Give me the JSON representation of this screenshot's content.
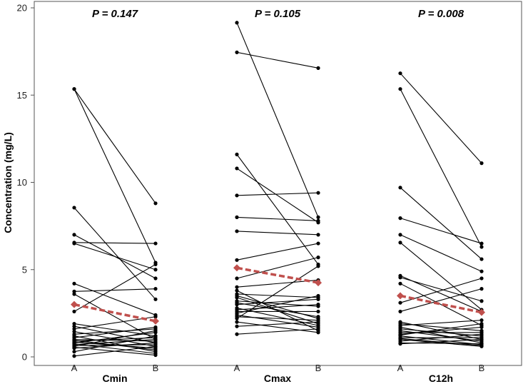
{
  "chart_data": {
    "type": "paired-dot-line",
    "ylabel": "Concentration (mg/L)",
    "ylim": [
      0,
      20
    ],
    "yticks": [
      0,
      5,
      10,
      15,
      20
    ],
    "ytick_labels": [
      "0",
      "5",
      "10",
      "15",
      "20"
    ],
    "conditions": [
      "A",
      "B"
    ],
    "mean_color": "#c0504d",
    "line_color": "#000000",
    "groups": [
      {
        "name": "Cmin",
        "p_label": "P = 0.147",
        "mean": [
          3.0,
          2.05
        ],
        "pairs": [
          [
            15.35,
            8.8
          ],
          [
            15.35,
            5.4
          ],
          [
            8.55,
            3.3
          ],
          [
            7.0,
            4.5
          ],
          [
            6.55,
            6.5
          ],
          [
            6.5,
            5.0
          ],
          [
            4.2,
            2.4
          ],
          [
            3.75,
            3.9
          ],
          [
            3.6,
            1.0
          ],
          [
            2.6,
            5.3
          ],
          [
            1.9,
            1.2
          ],
          [
            1.75,
            0.8
          ],
          [
            1.6,
            2.3
          ],
          [
            1.45,
            0.6
          ],
          [
            1.3,
            1.6
          ],
          [
            1.2,
            0.3
          ],
          [
            1.1,
            1.7
          ],
          [
            1.0,
            0.9
          ],
          [
            0.9,
            1.1
          ],
          [
            0.85,
            0.5
          ],
          [
            0.8,
            1.4
          ],
          [
            0.75,
            0.2
          ],
          [
            0.7,
            1.0
          ],
          [
            0.65,
            0.7
          ],
          [
            0.6,
            1.5
          ],
          [
            0.55,
            0.1
          ],
          [
            0.5,
            0.8
          ],
          [
            0.3,
            1.2
          ],
          [
            0.05,
            0.6
          ],
          [
            0.95,
            0.4
          ]
        ]
      },
      {
        "name": "Cmax",
        "p_label": "P = 0.105",
        "mean": [
          5.1,
          4.25
        ],
        "pairs": [
          [
            19.15,
            8.0
          ],
          [
            17.45,
            16.55
          ],
          [
            11.6,
            5.3
          ],
          [
            10.8,
            7.7
          ],
          [
            9.25,
            9.4
          ],
          [
            8.0,
            7.8
          ],
          [
            7.2,
            7.0
          ],
          [
            5.55,
            6.5
          ],
          [
            4.5,
            5.7
          ],
          [
            4.0,
            4.4
          ],
          [
            3.8,
            1.5
          ],
          [
            3.6,
            3.4
          ],
          [
            3.5,
            2.2
          ],
          [
            3.4,
            1.9
          ],
          [
            3.2,
            2.9
          ],
          [
            3.0,
            3.3
          ],
          [
            2.8,
            1.8
          ],
          [
            2.6,
            2.6
          ],
          [
            2.5,
            3.5
          ],
          [
            2.4,
            1.7
          ],
          [
            2.3,
            2.1
          ],
          [
            2.2,
            5.2
          ],
          [
            2.0,
            1.4
          ],
          [
            1.75,
            2.0
          ],
          [
            1.3,
            1.6
          ],
          [
            3.1,
            2.3
          ],
          [
            2.7,
            3.0
          ]
        ]
      },
      {
        "name": "C12h",
        "p_label": "P = 0.008",
        "mean": [
          3.5,
          2.55
        ],
        "pairs": [
          [
            16.25,
            11.1
          ],
          [
            15.35,
            6.3
          ],
          [
            9.7,
            5.6
          ],
          [
            7.95,
            6.5
          ],
          [
            7.0,
            4.9
          ],
          [
            6.55,
            2.7
          ],
          [
            4.65,
            2.6
          ],
          [
            4.55,
            3.2
          ],
          [
            4.2,
            1.8
          ],
          [
            3.1,
            4.5
          ],
          [
            2.6,
            3.9
          ],
          [
            2.0,
            1.0
          ],
          [
            1.9,
            1.5
          ],
          [
            1.8,
            2.1
          ],
          [
            1.7,
            0.8
          ],
          [
            1.6,
            1.2
          ],
          [
            1.5,
            0.9
          ],
          [
            1.4,
            1.4
          ],
          [
            1.3,
            1.7
          ],
          [
            1.2,
            0.7
          ],
          [
            1.1,
            1.1
          ],
          [
            1.0,
            0.6
          ],
          [
            0.9,
            1.3
          ],
          [
            0.8,
            0.75
          ],
          [
            0.75,
            1.0
          ],
          [
            1.25,
            1.9
          ],
          [
            1.05,
            0.65
          ]
        ]
      }
    ]
  }
}
